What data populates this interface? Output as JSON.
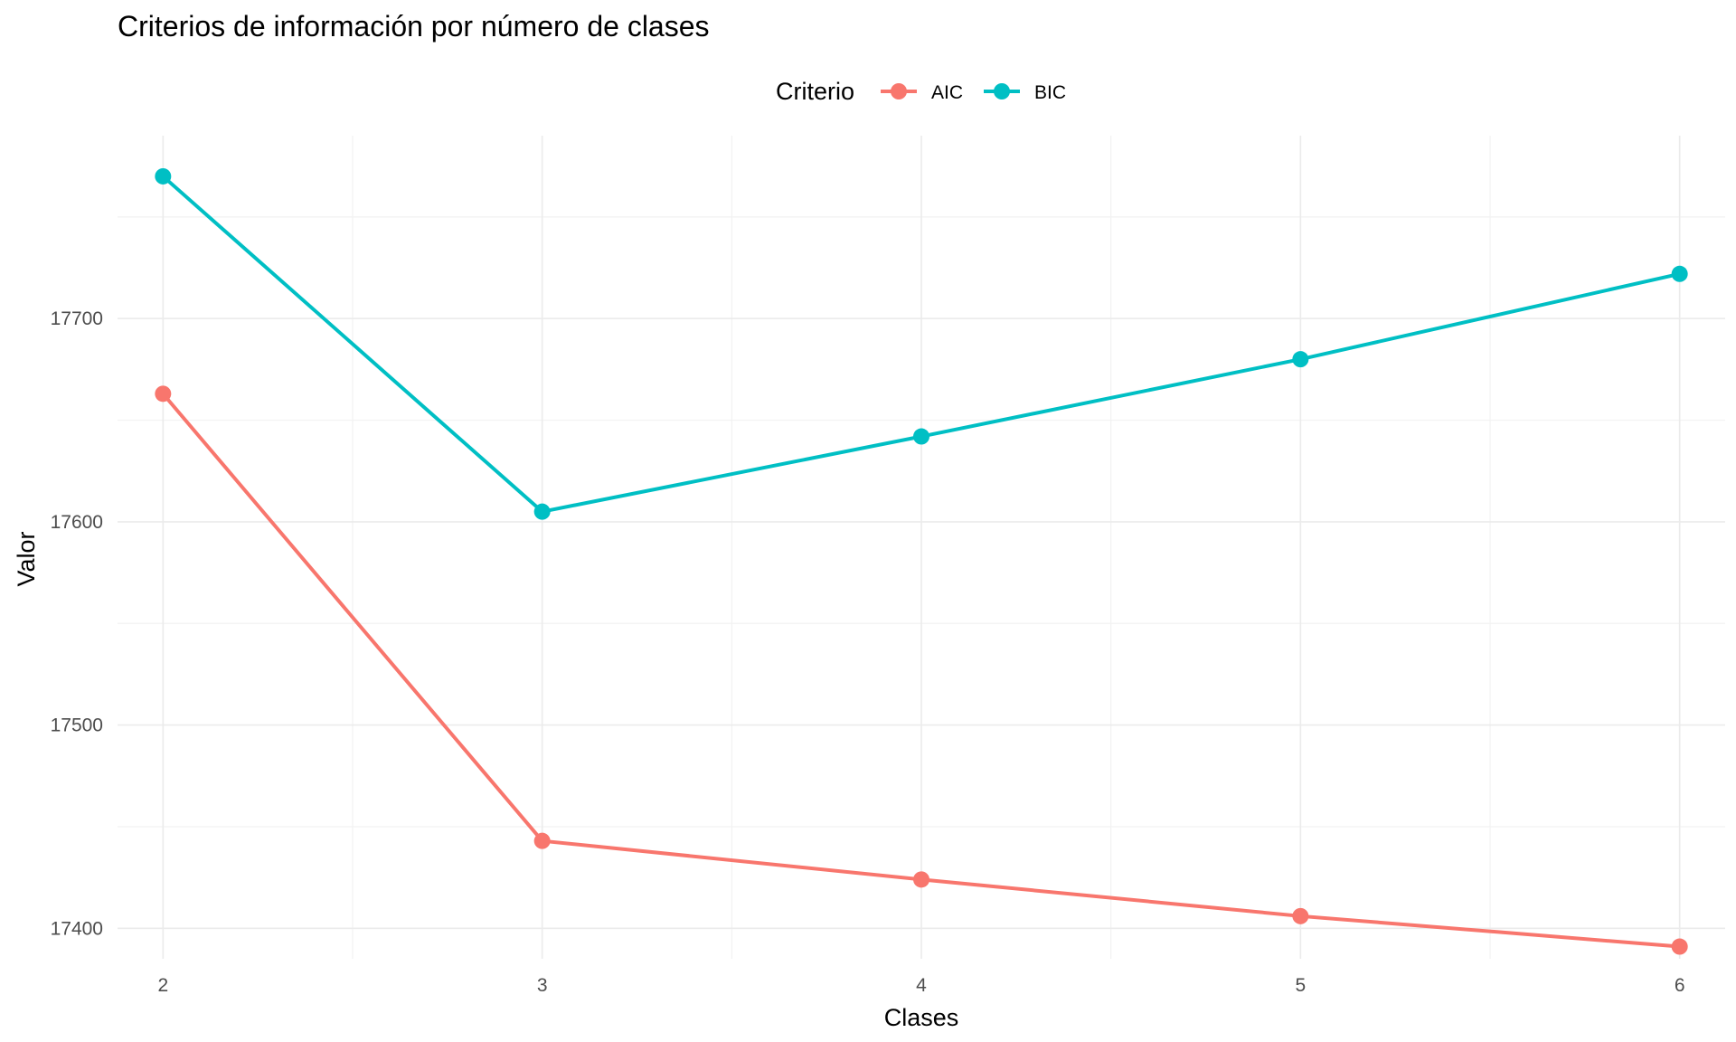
{
  "chart_data": {
    "type": "line",
    "title": "Criterios de información por número de clases",
    "xlabel": "Clases",
    "ylabel": "Valor",
    "x": [
      2,
      3,
      4,
      5,
      6
    ],
    "x_ticks": [
      "2",
      "3",
      "4",
      "5",
      "6"
    ],
    "y_ticks": [
      "17400",
      "17500",
      "17600",
      "17700"
    ],
    "xlim": [
      1.88,
      6.12
    ],
    "ylim": [
      17385,
      17790
    ],
    "grid": true,
    "legend": {
      "title": "Criterio",
      "placement": "top"
    },
    "series": [
      {
        "name": "AIC",
        "color": "#F8766D",
        "values": [
          17663,
          17443,
          17424,
          17406,
          17391
        ]
      },
      {
        "name": "BIC",
        "color": "#00BFC4",
        "values": [
          17770,
          17605,
          17642,
          17680,
          17722
        ]
      }
    ]
  }
}
